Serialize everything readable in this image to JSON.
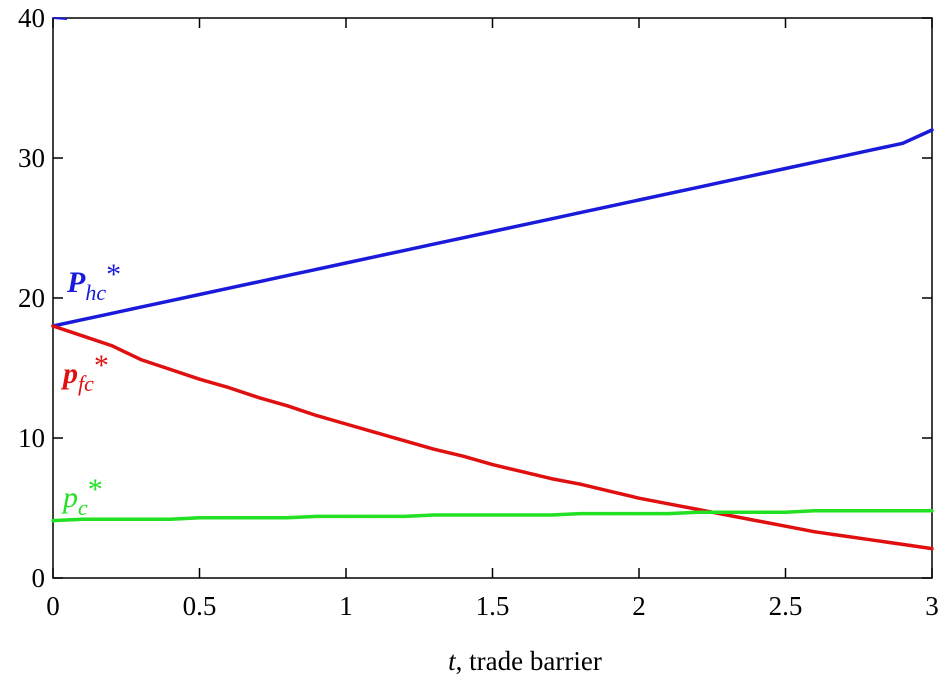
{
  "chart_data": {
    "type": "line",
    "xlabel": {
      "var": "t",
      "rest": ", trade barrier"
    },
    "xlim": [
      0,
      3
    ],
    "ylim": [
      0,
      40
    ],
    "x_ticks": [
      "0",
      "0.5",
      "1",
      "1.5",
      "2",
      "2.5",
      "3"
    ],
    "y_ticks": [
      "0",
      "10",
      "20",
      "30",
      "40"
    ],
    "grid": false,
    "series": [
      {
        "key": "Phc",
        "name_main": "P",
        "name_sub": "hc",
        "name_sup": "*",
        "color": "#1a1adb",
        "x": [
          0,
          0.1,
          0.2,
          0.3,
          0.4,
          0.5,
          0.6,
          0.7,
          0.8,
          0.9,
          1.0,
          1.1,
          1.2,
          1.3,
          1.4,
          1.5,
          1.6,
          1.7,
          1.8,
          1.9,
          2.0,
          2.1,
          2.2,
          2.3,
          2.4,
          2.5,
          2.6,
          2.7,
          2.8,
          2.9,
          3.0
        ],
        "values": [
          18.0,
          18.45,
          18.9,
          19.35,
          19.8,
          20.25,
          20.7,
          21.15,
          21.6,
          22.05,
          22.5,
          22.95,
          23.4,
          23.85,
          24.3,
          24.75,
          25.2,
          25.65,
          26.1,
          26.55,
          27.0,
          27.45,
          27.9,
          28.35,
          28.8,
          29.25,
          29.7,
          30.15,
          30.6,
          31.05,
          32.0
        ]
      },
      {
        "key": "pfc",
        "name_main": "p",
        "name_sub": "fc",
        "name_sup": "*",
        "color": "#e01010",
        "x": [
          0,
          0.1,
          0.2,
          0.3,
          0.4,
          0.5,
          0.6,
          0.7,
          0.8,
          0.9,
          1.0,
          1.1,
          1.2,
          1.3,
          1.4,
          1.5,
          1.6,
          1.7,
          1.8,
          1.9,
          2.0,
          2.1,
          2.2,
          2.3,
          2.4,
          2.5,
          2.6,
          2.7,
          2.8,
          2.9,
          3.0
        ],
        "values": [
          18.0,
          17.3,
          16.6,
          15.6,
          14.9,
          14.2,
          13.6,
          12.9,
          12.3,
          11.6,
          11.0,
          10.4,
          9.8,
          9.2,
          8.7,
          8.1,
          7.6,
          7.1,
          6.7,
          6.2,
          5.7,
          5.3,
          4.9,
          4.5,
          4.1,
          3.7,
          3.3,
          3.0,
          2.7,
          2.4,
          2.1
        ]
      },
      {
        "key": "pc",
        "name_main": "p",
        "name_sub": "c",
        "name_sup": "*",
        "color": "#22e022",
        "x": [
          0,
          0.1,
          0.2,
          0.3,
          0.4,
          0.5,
          0.6,
          0.7,
          0.8,
          0.9,
          1.0,
          1.1,
          1.2,
          1.3,
          1.4,
          1.5,
          1.6,
          1.7,
          1.8,
          1.9,
          2.0,
          2.1,
          2.2,
          2.3,
          2.4,
          2.5,
          2.6,
          2.7,
          2.8,
          2.9,
          3.0
        ],
        "values": [
          4.1,
          4.2,
          4.2,
          4.2,
          4.2,
          4.3,
          4.3,
          4.3,
          4.3,
          4.4,
          4.4,
          4.4,
          4.4,
          4.5,
          4.5,
          4.5,
          4.5,
          4.5,
          4.6,
          4.6,
          4.6,
          4.6,
          4.7,
          4.7,
          4.7,
          4.7,
          4.8,
          4.8,
          4.8,
          4.8,
          4.8
        ]
      }
    ]
  }
}
